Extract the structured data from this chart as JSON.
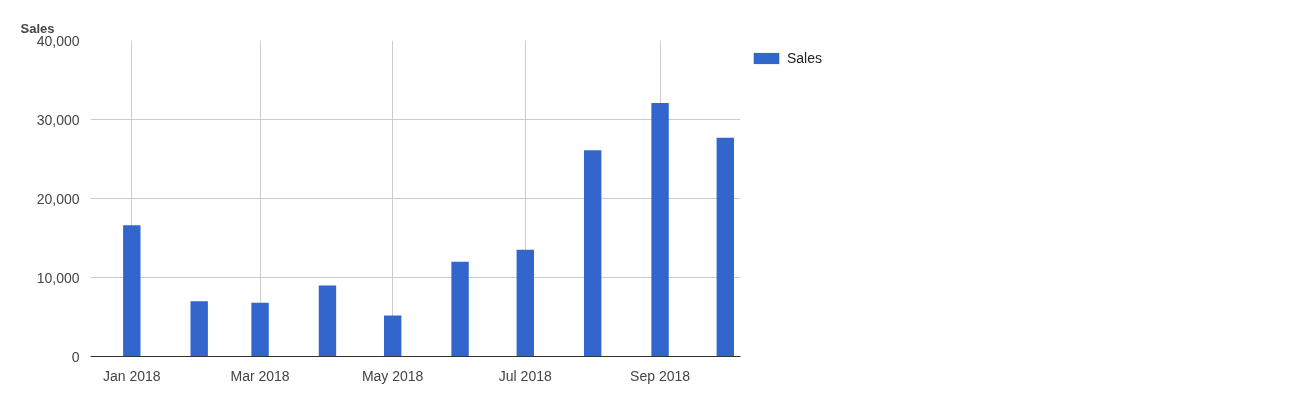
{
  "chart_data": {
    "type": "bar",
    "title": "Sales",
    "x": [
      "2018-01-01",
      "2018-02-01",
      "2018-03-01",
      "2018-04-01",
      "2018-05-01",
      "2018-06-01",
      "2018-07-01",
      "2018-08-01",
      "2018-09-01",
      "2018-10-01"
    ],
    "series": [
      {
        "name": "Sales",
        "color": "#3366cc",
        "values": [
          16600,
          7000,
          6800,
          9000,
          5200,
          12000,
          13500,
          26100,
          32100,
          27700
        ]
      }
    ],
    "xlim": [
      "2017-12-13",
      "2018-10-08"
    ],
    "xticks": [
      {
        "value": "2018-01-01",
        "label": "Jan 2018"
      },
      {
        "value": "2018-03-01",
        "label": "Mar 2018"
      },
      {
        "value": "2018-05-01",
        "label": "May 2018"
      },
      {
        "value": "2018-07-01",
        "label": "Jul 2018"
      },
      {
        "value": "2018-09-01",
        "label": "Sep 2018"
      }
    ],
    "ylim": [
      0,
      40000
    ],
    "yticks": [
      {
        "value": 0,
        "label": "0"
      },
      {
        "value": 10000,
        "label": "10,000"
      },
      {
        "value": 20000,
        "label": "20,000"
      },
      {
        "value": 30000,
        "label": "30,000"
      },
      {
        "value": 40000,
        "label": "40,000"
      }
    ],
    "grid": true,
    "legend": "top right"
  }
}
